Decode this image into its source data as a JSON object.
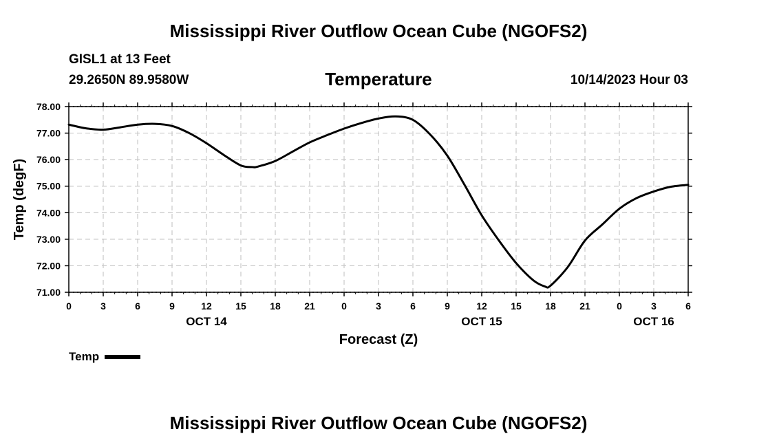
{
  "header": {
    "title": "Mississippi River Outflow Ocean Cube (NGOFS2)",
    "station": "GISL1 at 13 Feet",
    "coords": "29.2650N  89.9580W",
    "subtitle": "Temperature",
    "datetime": "10/14/2023 Hour 03"
  },
  "footer": {
    "title": "Mississippi River Outflow Ocean Cube (NGOFS2)"
  },
  "legend": {
    "label": "Temp"
  },
  "chart_data": {
    "type": "line",
    "title": "Temperature",
    "xlabel": "Forecast (Z)",
    "ylabel": "Temp (degF)",
    "xlim": [
      0,
      54
    ],
    "ylim": [
      71,
      78
    ],
    "y_ticks": [
      "71.00",
      "72.00",
      "73.00",
      "74.00",
      "75.00",
      "76.00",
      "77.00",
      "78.00"
    ],
    "x_tick_labels": [
      "0",
      "3",
      "6",
      "9",
      "12",
      "15",
      "18",
      "21",
      "0",
      "3",
      "6",
      "9",
      "12",
      "15",
      "18",
      "21",
      "0",
      "3",
      "6"
    ],
    "date_labels": [
      {
        "text": "OCT 14",
        "at_hour": 12
      },
      {
        "text": "OCT 15",
        "at_hour": 36
      },
      {
        "text": "OCT 16",
        "at_hour": 51
      }
    ],
    "grid": true,
    "series": [
      {
        "name": "Temp",
        "x": [
          0,
          1.5,
          3,
          4.5,
          6,
          7.5,
          9,
          10.5,
          12,
          13.5,
          15,
          16,
          16.5,
          18,
          19.5,
          21,
          22.5,
          24,
          25.5,
          27,
          28.5,
          30,
          31.5,
          33,
          34.5,
          36,
          37.5,
          39,
          40.5,
          41.5,
          42,
          43.5,
          45,
          46.5,
          48,
          49.5,
          51,
          52.5,
          54
        ],
        "values": [
          77.32,
          77.18,
          77.13,
          77.22,
          77.32,
          77.35,
          77.27,
          77.0,
          76.62,
          76.18,
          75.78,
          75.72,
          75.74,
          75.95,
          76.3,
          76.65,
          76.92,
          77.17,
          77.38,
          77.55,
          77.63,
          77.5,
          76.95,
          76.15,
          75.05,
          73.9,
          72.95,
          72.1,
          71.45,
          71.22,
          71.25,
          71.95,
          72.95,
          73.55,
          74.15,
          74.55,
          74.8,
          74.98,
          75.05
        ]
      }
    ]
  }
}
